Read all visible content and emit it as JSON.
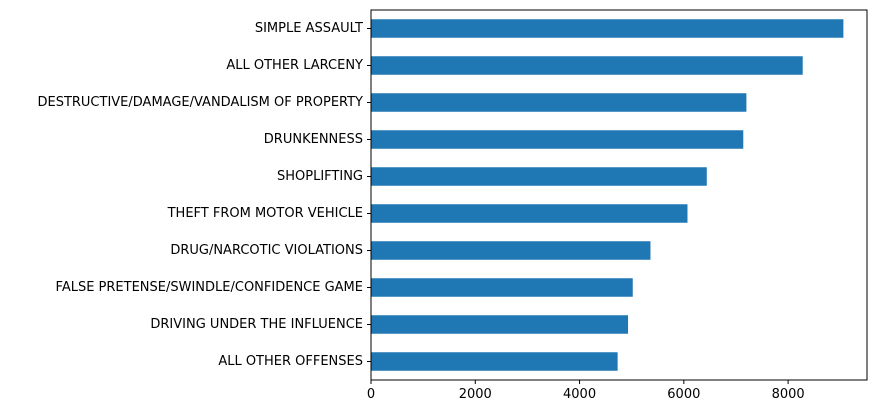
{
  "chart_data": {
    "type": "bar",
    "orientation": "horizontal",
    "categories": [
      "SIMPLE ASSAULT",
      "ALL OTHER LARCENY",
      "DESTRUCTIVE/DAMAGE/VANDALISM OF PROPERTY",
      "DRUNKENNESS",
      "SHOPLIFTING",
      "THEFT FROM MOTOR VEHICLE",
      "DRUG/NARCOTIC VIOLATIONS",
      "FALSE PRETENSE/SWINDLE/CONFIDENCE GAME",
      "DRIVING UNDER THE INFLUENCE",
      "ALL OTHER OFFENSES"
    ],
    "values": [
      9060,
      8280,
      7200,
      7140,
      6440,
      6070,
      5360,
      5020,
      4930,
      4730
    ],
    "title": "",
    "xlabel": "",
    "ylabel": "",
    "xlim": [
      0,
      9513
    ],
    "xticks": [
      0,
      2000,
      4000,
      6000,
      8000
    ],
    "xtick_labels": [
      "0",
      "2000",
      "4000",
      "6000",
      "8000"
    ],
    "grid": false,
    "legend": "none",
    "bar_color": "#1f77b4"
  }
}
